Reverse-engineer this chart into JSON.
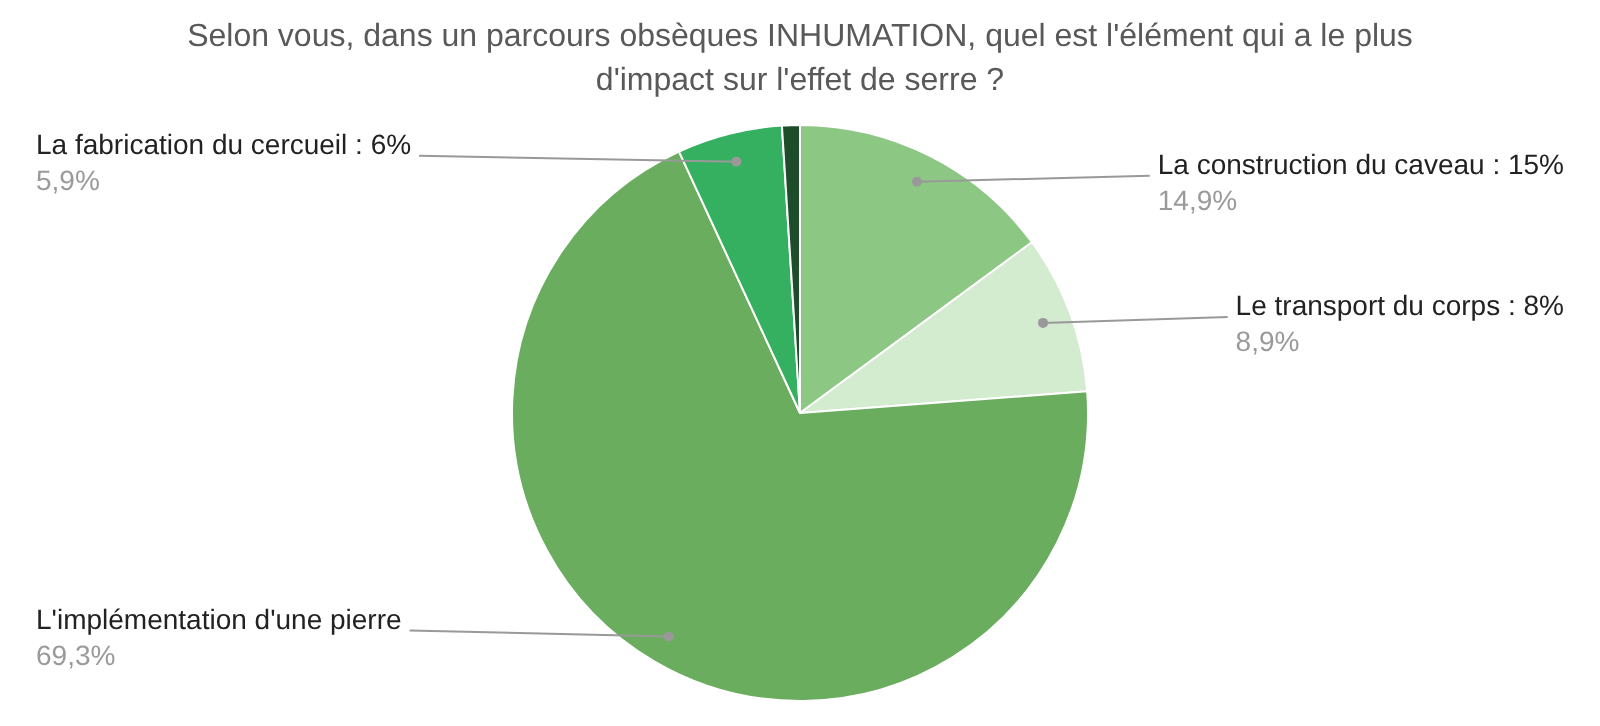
{
  "chart_data": {
    "type": "pie",
    "title": "Selon vous, dans un parcours obsèques INHUMATION, quel est l'élément qui a le plus d'impact sur l'effet de serre ?",
    "categories": [
      "La construction du caveau : 15%",
      "Le transport du corps : 8%",
      "L'implémentation d'une pierre",
      "La fabrication du cercueil : 6%",
      null
    ],
    "values": [
      14.9,
      8.9,
      69.3,
      5.9,
      1.0
    ],
    "value_labels": [
      "14,9%",
      "8,9%",
      "69,3%",
      "5,9%",
      null
    ],
    "colors": [
      "#8cc784",
      "#d3ebcf",
      "#6aad5e",
      "#34b060",
      "#1e4d2b"
    ],
    "legend": false
  }
}
